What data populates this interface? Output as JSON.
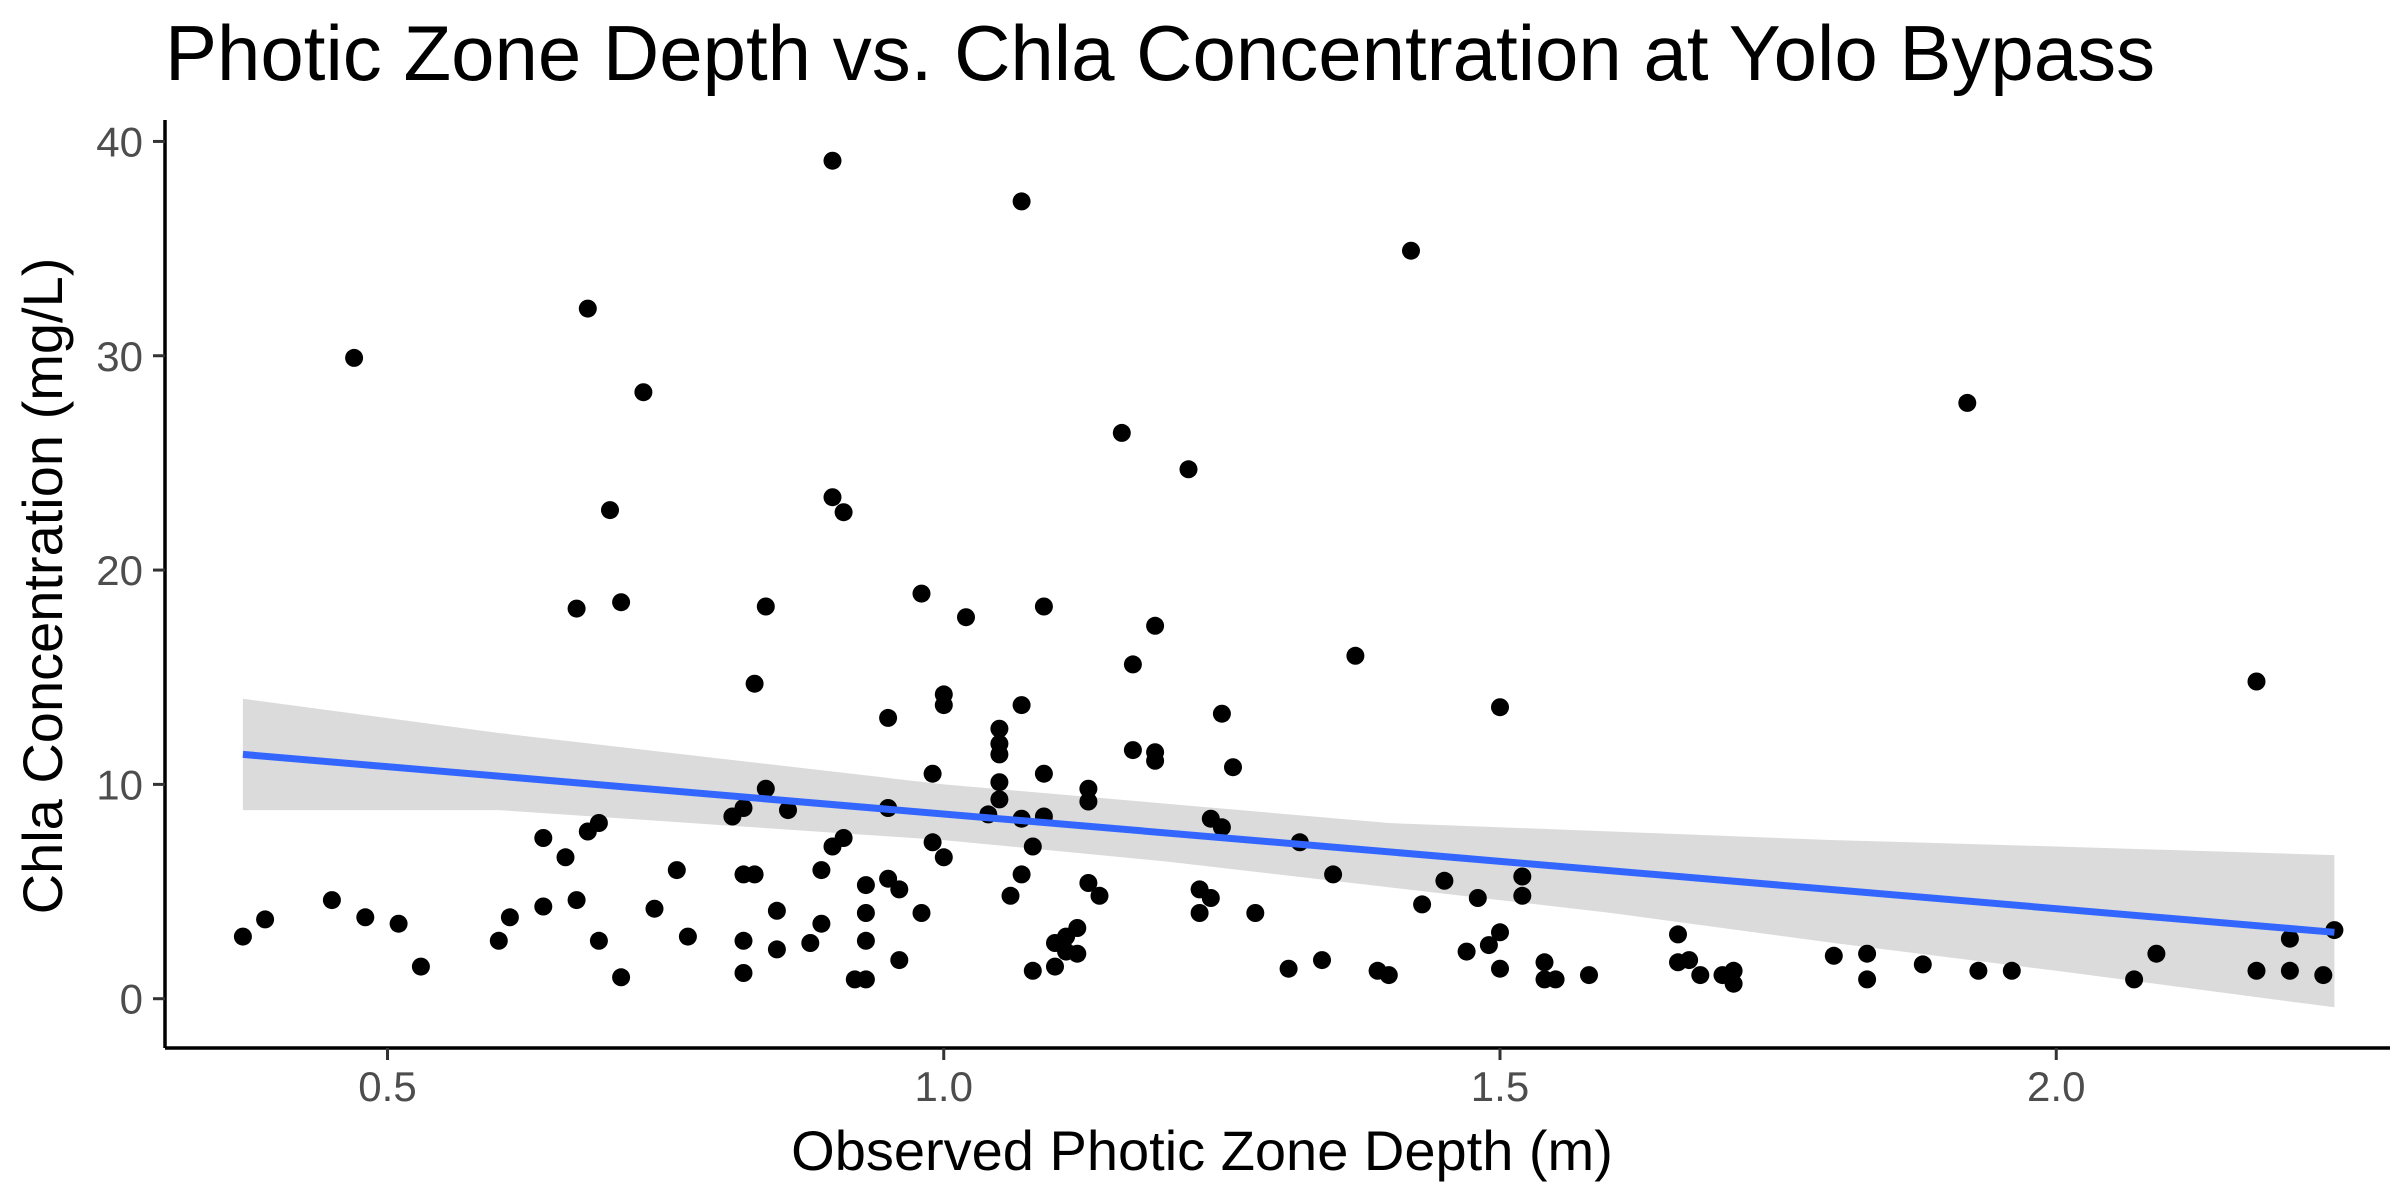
{
  "chart_data": {
    "type": "scatter",
    "title": "Photic Zone Depth vs. Chla Concentration at Yolo Bypass",
    "xlabel": "Observed Photic Zone Depth (m)",
    "ylabel": "Chla Concentration (mg/L)",
    "xlim": [
      0.3,
      2.3
    ],
    "ylim": [
      -2.3,
      41
    ],
    "x_ticks": [
      0.5,
      1.0,
      1.5,
      2.0
    ],
    "x_tick_labels": [
      "0.5",
      "1.0",
      "1.5",
      "2.0"
    ],
    "y_ticks": [
      0,
      10,
      20,
      30,
      40
    ],
    "y_tick_labels": [
      "0",
      "10",
      "20",
      "30",
      "40"
    ],
    "grid": false,
    "legend": "none",
    "point_color": "#000000",
    "line_color": "#3366ff",
    "band_color": "#d9d9d9",
    "points": [
      [
        0.37,
        2.9
      ],
      [
        0.39,
        3.7
      ],
      [
        0.45,
        4.6
      ],
      [
        0.47,
        29.9
      ],
      [
        0.48,
        3.8
      ],
      [
        0.51,
        3.5
      ],
      [
        0.53,
        1.5
      ],
      [
        0.6,
        2.7
      ],
      [
        0.61,
        3.8
      ],
      [
        0.64,
        7.5
      ],
      [
        0.64,
        4.3
      ],
      [
        0.66,
        6.6
      ],
      [
        0.67,
        18.2
      ],
      [
        0.67,
        4.6
      ],
      [
        0.68,
        32.2
      ],
      [
        0.68,
        7.8
      ],
      [
        0.69,
        8.2
      ],
      [
        0.69,
        2.7
      ],
      [
        0.7,
        22.8
      ],
      [
        0.71,
        18.5
      ],
      [
        0.71,
        1.0
      ],
      [
        0.73,
        28.3
      ],
      [
        0.74,
        4.2
      ],
      [
        0.76,
        6.0
      ],
      [
        0.77,
        2.9
      ],
      [
        0.81,
        8.5
      ],
      [
        0.82,
        8.9
      ],
      [
        0.82,
        5.8
      ],
      [
        0.82,
        2.7
      ],
      [
        0.82,
        1.2
      ],
      [
        0.83,
        5.8
      ],
      [
        0.83,
        14.7
      ],
      [
        0.84,
        18.3
      ],
      [
        0.84,
        9.8
      ],
      [
        0.85,
        4.1
      ],
      [
        0.85,
        2.3
      ],
      [
        0.86,
        8.8
      ],
      [
        0.88,
        2.6
      ],
      [
        0.89,
        6.0
      ],
      [
        0.89,
        3.5
      ],
      [
        0.9,
        39.1
      ],
      [
        0.9,
        23.4
      ],
      [
        0.9,
        7.1
      ],
      [
        0.91,
        22.7
      ],
      [
        0.91,
        7.5
      ],
      [
        0.92,
        0.9
      ],
      [
        0.93,
        5.3
      ],
      [
        0.93,
        4.0
      ],
      [
        0.93,
        2.7
      ],
      [
        0.93,
        0.9
      ],
      [
        0.95,
        13.1
      ],
      [
        0.95,
        8.9
      ],
      [
        0.95,
        5.6
      ],
      [
        0.96,
        5.1
      ],
      [
        0.96,
        1.8
      ],
      [
        0.98,
        18.9
      ],
      [
        0.98,
        4.0
      ],
      [
        0.99,
        10.5
      ],
      [
        0.99,
        7.3
      ],
      [
        1.0,
        14.2
      ],
      [
        1.0,
        13.7
      ],
      [
        1.0,
        6.6
      ],
      [
        1.02,
        17.8
      ],
      [
        1.04,
        8.6
      ],
      [
        1.05,
        12.6
      ],
      [
        1.05,
        11.9
      ],
      [
        1.05,
        11.4
      ],
      [
        1.05,
        10.1
      ],
      [
        1.05,
        9.3
      ],
      [
        1.06,
        4.8
      ],
      [
        1.07,
        37.2
      ],
      [
        1.07,
        13.7
      ],
      [
        1.07,
        8.4
      ],
      [
        1.07,
        5.8
      ],
      [
        1.08,
        7.1
      ],
      [
        1.08,
        1.3
      ],
      [
        1.09,
        18.3
      ],
      [
        1.09,
        10.5
      ],
      [
        1.09,
        8.5
      ],
      [
        1.1,
        2.6
      ],
      [
        1.1,
        1.5
      ],
      [
        1.11,
        2.9
      ],
      [
        1.11,
        2.2
      ],
      [
        1.12,
        3.3
      ],
      [
        1.12,
        2.1
      ],
      [
        1.13,
        9.8
      ],
      [
        1.13,
        9.2
      ],
      [
        1.13,
        5.4
      ],
      [
        1.14,
        4.8
      ],
      [
        1.16,
        26.4
      ],
      [
        1.17,
        15.6
      ],
      [
        1.17,
        11.6
      ],
      [
        1.19,
        17.4
      ],
      [
        1.19,
        11.5
      ],
      [
        1.19,
        11.1
      ],
      [
        1.22,
        24.7
      ],
      [
        1.23,
        5.1
      ],
      [
        1.23,
        4.0
      ],
      [
        1.24,
        8.4
      ],
      [
        1.24,
        4.7
      ],
      [
        1.25,
        13.3
      ],
      [
        1.25,
        8.0
      ],
      [
        1.26,
        10.8
      ],
      [
        1.28,
        4.0
      ],
      [
        1.31,
        1.4
      ],
      [
        1.32,
        7.3
      ],
      [
        1.34,
        1.8
      ],
      [
        1.35,
        5.8
      ],
      [
        1.37,
        16.0
      ],
      [
        1.39,
        1.3
      ],
      [
        1.4,
        1.1
      ],
      [
        1.42,
        34.9
      ],
      [
        1.43,
        4.4
      ],
      [
        1.45,
        5.5
      ],
      [
        1.47,
        2.2
      ],
      [
        1.48,
        4.7
      ],
      [
        1.49,
        2.5
      ],
      [
        1.5,
        13.6
      ],
      [
        1.5,
        3.1
      ],
      [
        1.5,
        1.4
      ],
      [
        1.52,
        5.7
      ],
      [
        1.52,
        4.8
      ],
      [
        1.54,
        1.7
      ],
      [
        1.54,
        0.9
      ],
      [
        1.55,
        0.9
      ],
      [
        1.58,
        1.1
      ],
      [
        1.66,
        3.0
      ],
      [
        1.66,
        1.7
      ],
      [
        1.67,
        1.8
      ],
      [
        1.68,
        1.1
      ],
      [
        1.7,
        1.1
      ],
      [
        1.71,
        1.3
      ],
      [
        1.71,
        0.7
      ],
      [
        1.8,
        2.0
      ],
      [
        1.83,
        2.1
      ],
      [
        1.83,
        0.9
      ],
      [
        1.88,
        1.6
      ],
      [
        1.92,
        27.8
      ],
      [
        1.93,
        1.3
      ],
      [
        1.96,
        1.3
      ],
      [
        2.07,
        0.9
      ],
      [
        2.09,
        2.1
      ],
      [
        2.18,
        14.8
      ],
      [
        2.18,
        1.3
      ],
      [
        2.21,
        2.8
      ],
      [
        2.21,
        1.3
      ],
      [
        2.24,
        1.1
      ],
      [
        2.25,
        3.2
      ]
    ],
    "fit_line": {
      "x": [
        0.37,
        2.25
      ],
      "y": [
        11.4,
        3.1
      ]
    },
    "confidence_band": {
      "x": [
        0.37,
        0.6,
        0.8,
        1.0,
        1.2,
        1.4,
        1.6,
        1.8,
        2.0,
        2.25
      ],
      "upper": [
        14.0,
        12.4,
        11.2,
        10.0,
        9.1,
        8.2,
        7.8,
        7.4,
        7.1,
        6.7
      ],
      "lower": [
        8.8,
        8.8,
        8.1,
        7.4,
        6.4,
        5.2,
        4.0,
        2.6,
        1.3,
        -0.4
      ]
    }
  }
}
